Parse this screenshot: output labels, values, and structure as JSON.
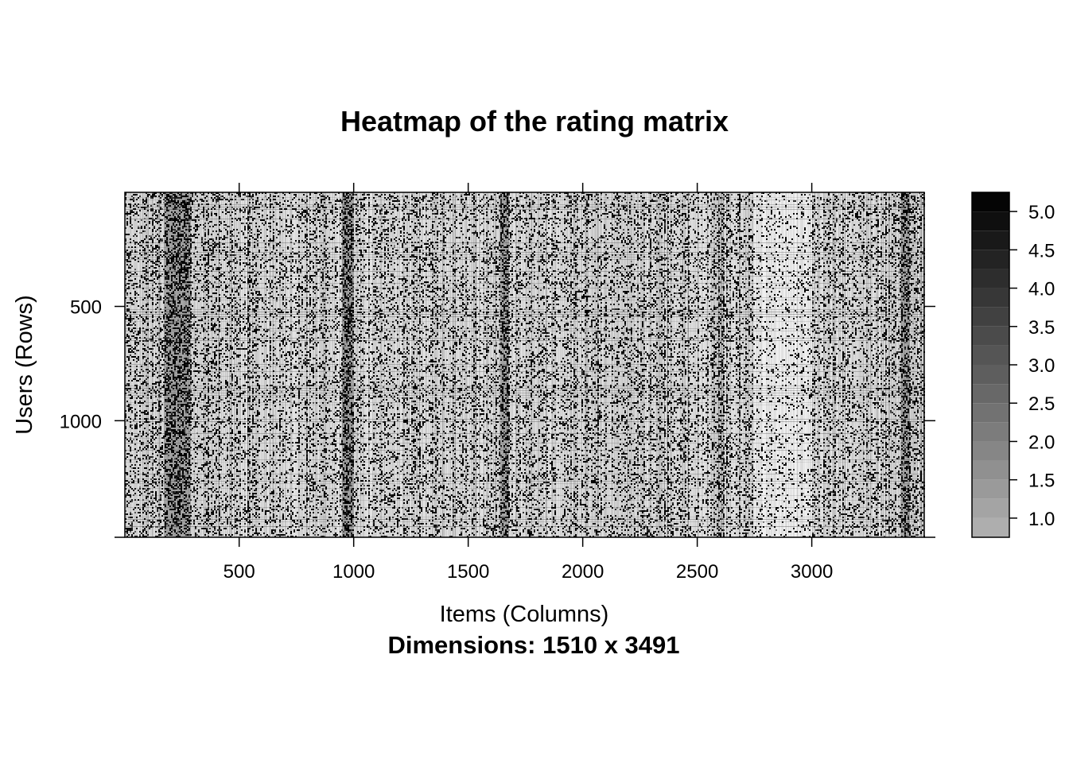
{
  "chart_data": {
    "type": "heatmap",
    "title": "Heatmap of the rating matrix",
    "xlabel": "Items (Columns)",
    "ylabel": "Users (Rows)",
    "sub": "Dimensions: 1510 x 3491",
    "rows": 1510,
    "cols": 3491,
    "xlim": [
      1,
      3491
    ],
    "ylim": [
      1,
      1510
    ],
    "x_ticks": [
      500,
      1000,
      1500,
      2000,
      2500,
      3000
    ],
    "y_ticks": [
      500,
      1000
    ],
    "x_tick_labels": [
      "500",
      "1000",
      "1500",
      "2000",
      "2500",
      "3000"
    ],
    "y_tick_labels": [
      "500",
      "1000"
    ],
    "colorkey": {
      "min": 0.75,
      "max": 5.25,
      "ticks": [
        1.0,
        1.5,
        2.0,
        2.5,
        3.0,
        3.5,
        4.0,
        4.5,
        5.0
      ],
      "tick_labels": [
        "1.0",
        "1.5",
        "2.0",
        "2.5",
        "3.0",
        "3.5",
        "4.0",
        "4.5",
        "5.0"
      ],
      "color_low": "#b3b3b3",
      "color_high": "#000000"
    },
    "dense_item_bands": [
      [
        170,
        290
      ],
      [
        950,
        1000
      ],
      [
        1640,
        1680
      ],
      [
        3390,
        3430
      ]
    ],
    "sparse_item_bands": [
      [
        2750,
        3000
      ]
    ],
    "grid": false,
    "legend_position": "right"
  }
}
